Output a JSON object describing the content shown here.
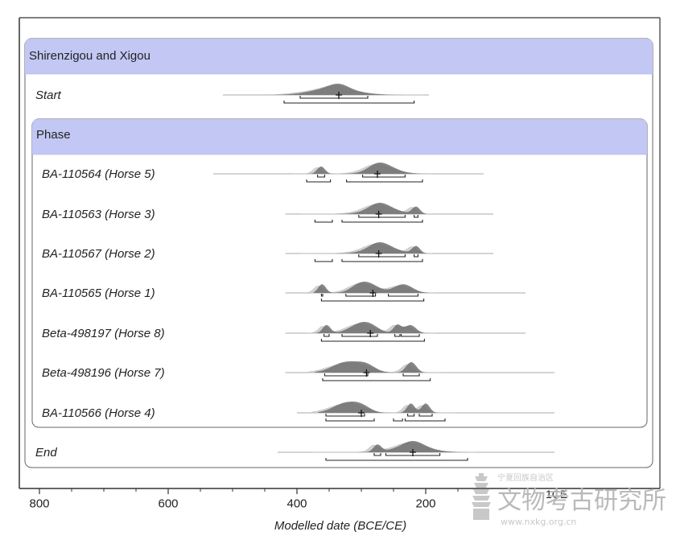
{
  "chart_data": {
    "type": "area",
    "title": "",
    "xlabel": "Modelled date (BCE/CE)",
    "ylabel": "",
    "xlim": [
      815,
      0
    ],
    "x_ticks": [
      800,
      600,
      400,
      200
    ],
    "groups": [
      {
        "label": "Shirenzigou and Xigou",
        "role": "outer"
      },
      {
        "label": "Phase",
        "role": "inner"
      }
    ],
    "series": [
      {
        "name": "Start",
        "prior_range": [
          515,
          195
        ],
        "peak": 335,
        "range_68": [
          395,
          290
        ],
        "range_95": [
          420,
          218
        ]
      },
      {
        "name": "BA-110564 (Horse 5)",
        "prior_range": [
          530,
          110
        ],
        "peak": 275,
        "range_68": [
          [
            368,
            357
          ],
          [
            298,
            232
          ]
        ],
        "range_95": [
          [
            385,
            348
          ],
          [
            323,
            205
          ]
        ]
      },
      {
        "name": "BA-110563 (Horse 3)",
        "prior_range": [
          418,
          95
        ],
        "peak": 273,
        "range_68": [
          [
            304,
            232
          ],
          [
            218,
            212
          ]
        ],
        "range_95": [
          [
            372,
            345
          ],
          [
            330,
            205
          ]
        ]
      },
      {
        "name": "BA-110567 (Horse 2)",
        "prior_range": [
          418,
          95
        ],
        "peak": 273,
        "range_68": [
          [
            304,
            232
          ],
          [
            218,
            212
          ]
        ],
        "range_95": [
          [
            372,
            345
          ],
          [
            330,
            205
          ]
        ]
      },
      {
        "name": "BA-110565 (Horse 1)",
        "prior_range": [
          418,
          45
        ],
        "peak": 282,
        "range_68": [
          [
            362,
            360
          ],
          [
            324,
            278
          ],
          [
            258,
            212
          ]
        ],
        "range_95": [
          [
            362,
            203
          ]
        ]
      },
      {
        "name": "Beta-498197 (Horse 8)",
        "prior_range": [
          418,
          45
        ],
        "peak": 286,
        "range_68": [
          [
            358,
            350
          ],
          [
            330,
            275
          ],
          [
            248,
            240
          ],
          [
            238,
            210
          ]
        ],
        "range_95": [
          [
            362,
            202
          ]
        ]
      },
      {
        "name": "Beta-498196 (Horse 7)",
        "prior_range": [
          418,
          0
        ],
        "peak": 292,
        "range_68": [
          [
            357,
            290
          ],
          [
            235,
            210
          ]
        ],
        "range_95": [
          [
            360,
            193
          ]
        ]
      },
      {
        "name": "BA-110566 (Horse 4)",
        "prior_range": [
          400,
          0
        ],
        "peak": 300,
        "range_68": [
          [
            355,
            295
          ],
          [
            228,
            218
          ],
          [
            210,
            190
          ]
        ],
        "range_95": [
          [
            355,
            280
          ],
          [
            250,
            236
          ],
          [
            232,
            170
          ]
        ]
      },
      {
        "name": "End",
        "prior_range": [
          430,
          0
        ],
        "peak": 220,
        "range_68": [
          [
            280,
            270
          ],
          [
            262,
            178
          ]
        ],
        "range_95": [
          [
            355,
            135
          ]
        ]
      }
    ]
  },
  "watermark": {
    "line_small": "宁夏回族自治区",
    "line_big": "文物考古研究所",
    "line_url": "www.nxkg.org.cn",
    "overlap_text": "1CE"
  }
}
